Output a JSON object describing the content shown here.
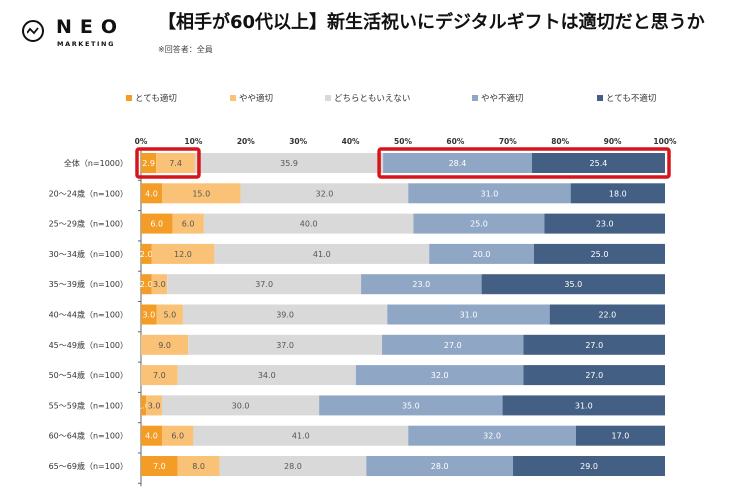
{
  "brand": {
    "name": "NEO",
    "sub": "MARKETING"
  },
  "header": {
    "title": "【相手が60代以上】新生活祝いにデジタルギフトは適切だと思うか",
    "note": "※回答者：全員"
  },
  "chart_data": {
    "type": "bar",
    "orientation": "horizontal-stacked-100",
    "title": "【相手が60代以上】新生活祝いにデジタルギフトは適切だと思うか",
    "subtitle": "※回答者：全員",
    "xlabel": "",
    "ylabel": "",
    "xlim": [
      0,
      100
    ],
    "x_ticks": [
      "0%",
      "10%",
      "20%",
      "30%",
      "40%",
      "50%",
      "60%",
      "70%",
      "80%",
      "90%",
      "100%"
    ],
    "legend_position": "top",
    "categories": [
      "全体（n=1000）",
      "20～24歳（n=100）",
      "25～29歳（n=100）",
      "30～34歳（n=100）",
      "35～39歳（n=100）",
      "40～44歳（n=100）",
      "45～49歳（n=100）",
      "50～54歳（n=100）",
      "55～59歳（n=100）",
      "60～64歳（n=100）",
      "65～69歳（n=100）"
    ],
    "series": [
      {
        "name": "とても適切",
        "color": "#f39c26",
        "label_color": "#ffffff",
        "values": [
          2.9,
          4.0,
          6.0,
          2.0,
          2.0,
          3.0,
          0,
          0,
          1.0,
          4.0,
          7.0
        ]
      },
      {
        "name": "やや適切",
        "color": "#fac276",
        "label_color": "#555555",
        "values": [
          7.4,
          15.0,
          6.0,
          12.0,
          3.0,
          5.0,
          9.0,
          7.0,
          3.0,
          6.0,
          8.0
        ]
      },
      {
        "name": "どちらともいえない",
        "color": "#d9d9d9",
        "label_color": "#555555",
        "values": [
          35.9,
          32.0,
          40.0,
          41.0,
          37.0,
          39.0,
          37.0,
          34.0,
          30.0,
          41.0,
          28.0
        ]
      },
      {
        "name": "やや不適切",
        "color": "#8fa6c5",
        "label_color": "#ffffff",
        "values": [
          28.4,
          31.0,
          25.0,
          20.0,
          23.0,
          31.0,
          27.0,
          32.0,
          35.0,
          32.0,
          28.0
        ]
      },
      {
        "name": "とても不適切",
        "color": "#435f84",
        "label_color": "#ffffff",
        "values": [
          25.4,
          18.0,
          23.0,
          25.0,
          35.0,
          22.0,
          27.0,
          27.0,
          31.0,
          17.0,
          29.0
        ]
      }
    ],
    "highlights": [
      {
        "row": 0,
        "from_series": 0,
        "to_series": 1,
        "color": "#d7141b"
      },
      {
        "row": 0,
        "from_series": 3,
        "to_series": 4,
        "color": "#d7141b"
      }
    ]
  }
}
